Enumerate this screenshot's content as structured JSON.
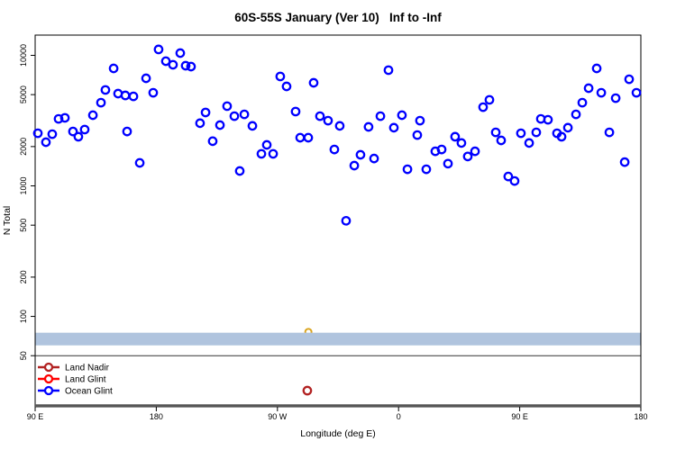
{
  "chart_data": {
    "type": "scatter",
    "title": "60S-55S January (Ver 10)   Inf to -Inf",
    "xlabel": "Longitude (deg E)",
    "ylabel": "N Total",
    "grid": false,
    "x_axis": {
      "range_unwrapped_deg": [
        90,
        540
      ],
      "ticks": [
        {
          "value": 90,
          "label": "90 E"
        },
        {
          "value": 180,
          "label": "180"
        },
        {
          "value": 270,
          "label": "90 W"
        },
        {
          "value": 360,
          "label": "0"
        },
        {
          "value": 450,
          "label": "90 E"
        },
        {
          "value": 540,
          "label": "180"
        }
      ]
    },
    "y_axis": {
      "scale": "log10",
      "range": [
        20.3,
        14290
      ],
      "ticks": [
        50,
        100,
        200,
        500,
        1000,
        2000,
        5000,
        10000
      ]
    },
    "legend": {
      "position": "bottom-left",
      "entries": [
        {
          "label": "Land Nadir",
          "color": "#B22222"
        },
        {
          "label": "Land Glint",
          "color": "#FF0000"
        },
        {
          "label": "Ocean Glint",
          "color": "#0000FF"
        }
      ]
    },
    "band": {
      "y_min": 60,
      "y_max": 75,
      "color": "#B0C4DE",
      "x_full_width": true
    },
    "hline": {
      "y": 50,
      "color": "#333333"
    },
    "frame_bottom_color": "#555555",
    "extra_marks": [
      {
        "color": "#DAA520",
        "point": [
          293,
          76
        ]
      }
    ],
    "series": [
      {
        "name": "Ocean Glint",
        "color": "#0000FF",
        "marker": "open-circle",
        "points": [
          [
            92.0,
            2530
          ],
          [
            98.0,
            2160
          ],
          [
            102.7,
            2490
          ],
          [
            107.4,
            3260
          ],
          [
            112.1,
            3320
          ],
          [
            118.1,
            2610
          ],
          [
            122.1,
            2380
          ],
          [
            126.8,
            2700
          ],
          [
            132.9,
            3480
          ],
          [
            138.9,
            4340
          ],
          [
            142.2,
            5430
          ],
          [
            148.3,
            7940
          ],
          [
            151.6,
            5090
          ],
          [
            157.0,
            4930
          ],
          [
            158.3,
            2610
          ],
          [
            163.0,
            4850
          ],
          [
            167.7,
            1500
          ],
          [
            172.4,
            6670
          ],
          [
            177.7,
            5170
          ],
          [
            181.7,
            11100
          ],
          [
            187.1,
            9020
          ],
          [
            192.4,
            8470
          ],
          [
            197.8,
            10400
          ],
          [
            201.8,
            8330
          ],
          [
            205.8,
            8200
          ],
          [
            212.5,
            3020
          ],
          [
            216.6,
            3650
          ],
          [
            221.9,
            2200
          ],
          [
            227.3,
            2920
          ],
          [
            232.6,
            4080
          ],
          [
            238.0,
            3420
          ],
          [
            242.0,
            1300
          ],
          [
            245.4,
            3530
          ],
          [
            251.4,
            2880
          ],
          [
            258.1,
            1760
          ],
          [
            262.1,
            2060
          ],
          [
            266.8,
            1760
          ],
          [
            272.1,
            6890
          ],
          [
            276.8,
            5780
          ],
          [
            283.5,
            3710
          ],
          [
            286.9,
            2340
          ],
          [
            292.9,
            2340
          ],
          [
            296.9,
            6160
          ],
          [
            301.6,
            3420
          ],
          [
            307.6,
            3160
          ],
          [
            312.3,
            1900
          ],
          [
            316.3,
            2880
          ],
          [
            321.0,
            540
          ],
          [
            327.1,
            1430
          ],
          [
            331.7,
            1730
          ],
          [
            337.7,
            2830
          ],
          [
            341.8,
            1620
          ],
          [
            346.5,
            3420
          ],
          [
            352.5,
            7700
          ],
          [
            356.5,
            2790
          ],
          [
            362.5,
            3480
          ],
          [
            366.6,
            1340
          ],
          [
            373.9,
            2450
          ],
          [
            375.9,
            3160
          ],
          [
            380.6,
            1340
          ],
          [
            387.3,
            1840
          ],
          [
            392.0,
            1900
          ],
          [
            396.7,
            1480
          ],
          [
            402.0,
            2380
          ],
          [
            406.7,
            2130
          ],
          [
            411.4,
            1680
          ],
          [
            416.8,
            1840
          ],
          [
            422.8,
            4010
          ],
          [
            427.5,
            4560
          ],
          [
            432.2,
            2570
          ],
          [
            436.2,
            2230
          ],
          [
            441.5,
            1180
          ],
          [
            446.2,
            1090
          ],
          [
            450.9,
            2530
          ],
          [
            457.0,
            2130
          ],
          [
            462.3,
            2570
          ],
          [
            465.7,
            3260
          ],
          [
            471.0,
            3210
          ],
          [
            477.7,
            2530
          ],
          [
            481.1,
            2380
          ],
          [
            485.8,
            2790
          ],
          [
            491.8,
            3530
          ],
          [
            496.5,
            4340
          ],
          [
            501.2,
            5600
          ],
          [
            507.2,
            7940
          ],
          [
            510.6,
            5170
          ],
          [
            516.6,
            2570
          ],
          [
            521.3,
            4700
          ],
          [
            528.0,
            1520
          ],
          [
            531.3,
            6560
          ],
          [
            536.7,
            5170
          ]
        ]
      },
      {
        "name": "Land Nadir",
        "color": "#B22222",
        "marker": "open-circle",
        "points": [
          [
            292.2,
            27
          ]
        ]
      },
      {
        "name": "Land Glint",
        "color": "#FF0000",
        "marker": "open-circle",
        "points": []
      }
    ]
  }
}
